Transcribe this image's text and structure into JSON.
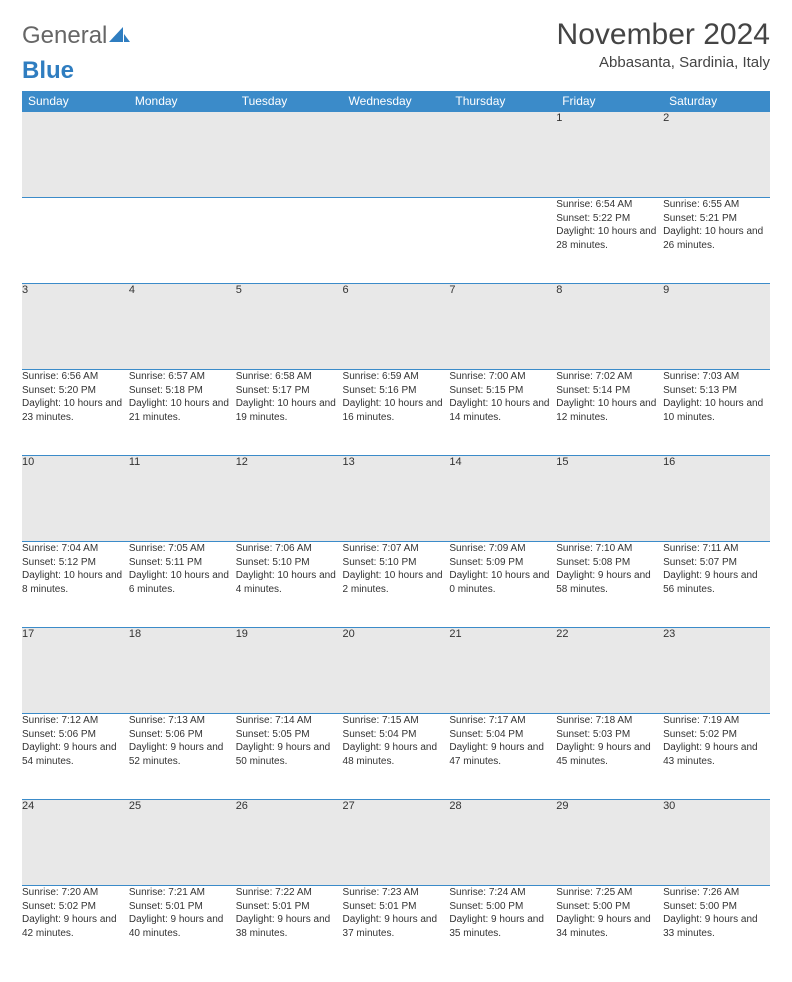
{
  "logo": {
    "text1": "General",
    "text2": "Blue"
  },
  "title": "November 2024",
  "location": "Abbasanta, Sardinia, Italy",
  "colors": {
    "header_bg": "#3b8bc9",
    "header_text": "#ffffff",
    "daynum_bg": "#e8e8e8",
    "border": "#3b8bc9",
    "logo_accent": "#2f7dc0"
  },
  "weekdays": [
    "Sunday",
    "Monday",
    "Tuesday",
    "Wednesday",
    "Thursday",
    "Friday",
    "Saturday"
  ],
  "weeks": [
    [
      null,
      null,
      null,
      null,
      null,
      {
        "n": "1",
        "sr": "6:54 AM",
        "ss": "5:22 PM",
        "dl": "10 hours and 28 minutes."
      },
      {
        "n": "2",
        "sr": "6:55 AM",
        "ss": "5:21 PM",
        "dl": "10 hours and 26 minutes."
      }
    ],
    [
      {
        "n": "3",
        "sr": "6:56 AM",
        "ss": "5:20 PM",
        "dl": "10 hours and 23 minutes."
      },
      {
        "n": "4",
        "sr": "6:57 AM",
        "ss": "5:18 PM",
        "dl": "10 hours and 21 minutes."
      },
      {
        "n": "5",
        "sr": "6:58 AM",
        "ss": "5:17 PM",
        "dl": "10 hours and 19 minutes."
      },
      {
        "n": "6",
        "sr": "6:59 AM",
        "ss": "5:16 PM",
        "dl": "10 hours and 16 minutes."
      },
      {
        "n": "7",
        "sr": "7:00 AM",
        "ss": "5:15 PM",
        "dl": "10 hours and 14 minutes."
      },
      {
        "n": "8",
        "sr": "7:02 AM",
        "ss": "5:14 PM",
        "dl": "10 hours and 12 minutes."
      },
      {
        "n": "9",
        "sr": "7:03 AM",
        "ss": "5:13 PM",
        "dl": "10 hours and 10 minutes."
      }
    ],
    [
      {
        "n": "10",
        "sr": "7:04 AM",
        "ss": "5:12 PM",
        "dl": "10 hours and 8 minutes."
      },
      {
        "n": "11",
        "sr": "7:05 AM",
        "ss": "5:11 PM",
        "dl": "10 hours and 6 minutes."
      },
      {
        "n": "12",
        "sr": "7:06 AM",
        "ss": "5:10 PM",
        "dl": "10 hours and 4 minutes."
      },
      {
        "n": "13",
        "sr": "7:07 AM",
        "ss": "5:10 PM",
        "dl": "10 hours and 2 minutes."
      },
      {
        "n": "14",
        "sr": "7:09 AM",
        "ss": "5:09 PM",
        "dl": "10 hours and 0 minutes."
      },
      {
        "n": "15",
        "sr": "7:10 AM",
        "ss": "5:08 PM",
        "dl": "9 hours and 58 minutes."
      },
      {
        "n": "16",
        "sr": "7:11 AM",
        "ss": "5:07 PM",
        "dl": "9 hours and 56 minutes."
      }
    ],
    [
      {
        "n": "17",
        "sr": "7:12 AM",
        "ss": "5:06 PM",
        "dl": "9 hours and 54 minutes."
      },
      {
        "n": "18",
        "sr": "7:13 AM",
        "ss": "5:06 PM",
        "dl": "9 hours and 52 minutes."
      },
      {
        "n": "19",
        "sr": "7:14 AM",
        "ss": "5:05 PM",
        "dl": "9 hours and 50 minutes."
      },
      {
        "n": "20",
        "sr": "7:15 AM",
        "ss": "5:04 PM",
        "dl": "9 hours and 48 minutes."
      },
      {
        "n": "21",
        "sr": "7:17 AM",
        "ss": "5:04 PM",
        "dl": "9 hours and 47 minutes."
      },
      {
        "n": "22",
        "sr": "7:18 AM",
        "ss": "5:03 PM",
        "dl": "9 hours and 45 minutes."
      },
      {
        "n": "23",
        "sr": "7:19 AM",
        "ss": "5:02 PM",
        "dl": "9 hours and 43 minutes."
      }
    ],
    [
      {
        "n": "24",
        "sr": "7:20 AM",
        "ss": "5:02 PM",
        "dl": "9 hours and 42 minutes."
      },
      {
        "n": "25",
        "sr": "7:21 AM",
        "ss": "5:01 PM",
        "dl": "9 hours and 40 minutes."
      },
      {
        "n": "26",
        "sr": "7:22 AM",
        "ss": "5:01 PM",
        "dl": "9 hours and 38 minutes."
      },
      {
        "n": "27",
        "sr": "7:23 AM",
        "ss": "5:01 PM",
        "dl": "9 hours and 37 minutes."
      },
      {
        "n": "28",
        "sr": "7:24 AM",
        "ss": "5:00 PM",
        "dl": "9 hours and 35 minutes."
      },
      {
        "n": "29",
        "sr": "7:25 AM",
        "ss": "5:00 PM",
        "dl": "9 hours and 34 minutes."
      },
      {
        "n": "30",
        "sr": "7:26 AM",
        "ss": "5:00 PM",
        "dl": "9 hours and 33 minutes."
      }
    ]
  ],
  "labels": {
    "sunrise": "Sunrise:",
    "sunset": "Sunset:",
    "daylight": "Daylight:"
  }
}
